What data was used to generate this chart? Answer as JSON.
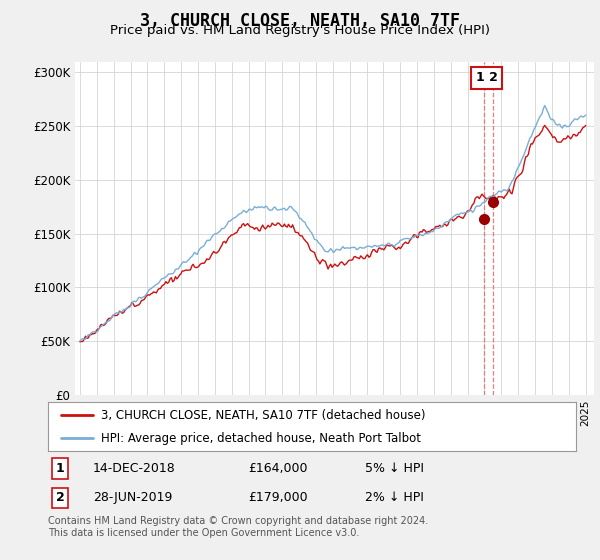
{
  "title": "3, CHURCH CLOSE, NEATH, SA10 7TF",
  "subtitle": "Price paid vs. HM Land Registry's House Price Index (HPI)",
  "ytick_values": [
    0,
    50000,
    100000,
    150000,
    200000,
    250000,
    300000
  ],
  "ylim": [
    0,
    310000
  ],
  "xlim_start": 1994.7,
  "xlim_end": 2025.5,
  "hpi_color": "#7aaed6",
  "price_color": "#cc1111",
  "dashed_line_color": "#e87070",
  "legend_label1": "3, CHURCH CLOSE, NEATH, SA10 7TF (detached house)",
  "legend_label2": "HPI: Average price, detached house, Neath Port Talbot",
  "sale1_label": "1",
  "sale1_date": "14-DEC-2018",
  "sale1_price": "£164,000",
  "sale1_note": "5% ↓ HPI",
  "sale1_x": 2018.95,
  "sale1_y": 164000,
  "sale2_label": "2",
  "sale2_date": "28-JUN-2019",
  "sale2_price": "£179,000",
  "sale2_note": "2% ↓ HPI",
  "sale2_x": 2019.49,
  "sale2_y": 179000,
  "footnote": "Contains HM Land Registry data © Crown copyright and database right 2024.\nThis data is licensed under the Open Government Licence v3.0.",
  "background_color": "#f0f0f0",
  "plot_background": "#ffffff",
  "grid_color": "#cccccc"
}
